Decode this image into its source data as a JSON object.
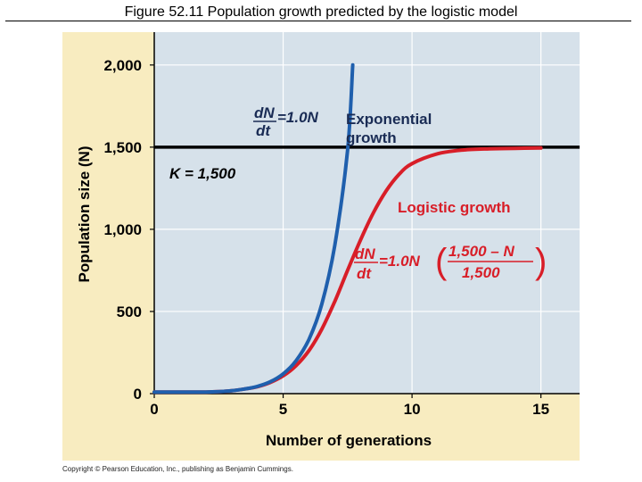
{
  "figure": {
    "title": "Figure 52.11  Population growth predicted by the logistic model",
    "copyright": "Copyright © Pearson Education, Inc., publishing as Benjamin Cummings."
  },
  "colors": {
    "panel_bg": "#f8ecc0",
    "plot_bg": "#d6e1ea",
    "exponential": "#1f5fad",
    "logistic": "#d81e28",
    "capacity_line": "#000000",
    "label_dark": "#1a2c55",
    "label_red": "#d81e28"
  },
  "chart_data": {
    "type": "line",
    "title": "Population growth predicted by the logistic model",
    "xlabel": "Number of generations",
    "ylabel": "Population size (N)",
    "xlim": [
      0,
      16.5
    ],
    "ylim": [
      0,
      2200
    ],
    "xticks": [
      0,
      5,
      10,
      15
    ],
    "xtick_labels": [
      "0",
      "5",
      "10",
      "15"
    ],
    "yticks": [
      0,
      500,
      1000,
      1500,
      2000
    ],
    "ytick_labels": [
      "0",
      "500",
      "1,000",
      "1,500",
      "2,000"
    ],
    "grid": true,
    "series": [
      {
        "name": "Exponential growth",
        "rate": 1.0,
        "x": [
          0,
          1,
          2,
          2.5,
          3,
          3.5,
          4,
          4.5,
          5,
          5.5,
          6,
          6.5,
          7,
          7.5,
          7.7
        ],
        "y": [
          10,
          10,
          10,
          12,
          18,
          28,
          44,
          72,
          120,
          200,
          330,
          545,
          900,
          1480,
          2000
        ]
      },
      {
        "name": "Logistic growth",
        "rate": 1.0,
        "K": 1500,
        "x": [
          0,
          1,
          2,
          2.5,
          3,
          3.5,
          4,
          4.5,
          5,
          5.5,
          6,
          6.5,
          7,
          7.5,
          8,
          8.5,
          9,
          9.5,
          10,
          11,
          12,
          13,
          14,
          15
        ],
        "y": [
          10,
          10,
          10,
          12,
          18,
          28,
          42,
          68,
          108,
          170,
          262,
          392,
          560,
          750,
          935,
          1100,
          1235,
          1335,
          1400,
          1460,
          1483,
          1490,
          1493,
          1495
        ]
      }
    ],
    "annotations": {
      "capacity": {
        "value": 1500,
        "label": "K = 1,500"
      },
      "exp_label": [
        "Exponential",
        "growth"
      ],
      "log_label": "Logistic growth",
      "exp_eq": {
        "num": "dN",
        "den": "dt",
        "rhs": "=1.0N"
      },
      "log_eq": {
        "num": "dN",
        "den": "dt",
        "rhs": "=1.0N",
        "frac_num": "1,500 – N",
        "frac_den": "1,500"
      }
    }
  }
}
